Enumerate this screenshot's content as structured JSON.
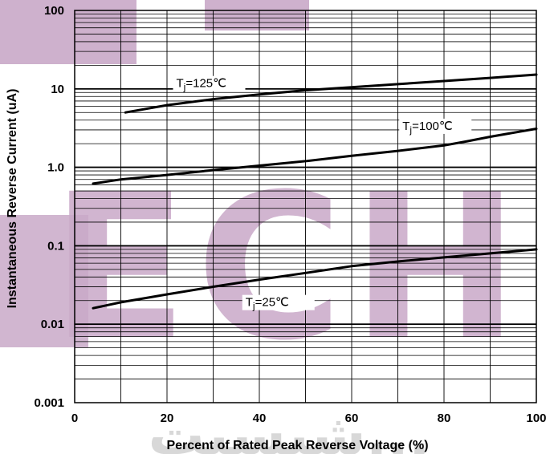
{
  "chart_data": {
    "type": "line",
    "x_scale": "linear",
    "y_scale": "log",
    "xlim": [
      0,
      100
    ],
    "ylim": [
      0.001,
      100
    ],
    "grid": true,
    "xlabel": "Percent of Rated Peak Reverse Voltage (%)",
    "ylabel": "Instantaneous Reverse Current (uA)",
    "x_ticks": [
      {
        "value": 0,
        "label": "0"
      },
      {
        "value": 20,
        "label": "20"
      },
      {
        "value": 40,
        "label": "40"
      },
      {
        "value": 60,
        "label": "60"
      },
      {
        "value": 80,
        "label": "80"
      },
      {
        "value": 100,
        "label": "100"
      }
    ],
    "y_ticks": [
      {
        "value": 100,
        "label": "100"
      },
      {
        "value": 10,
        "label": "10"
      },
      {
        "value": 1,
        "label": "1.0"
      },
      {
        "value": 0.1,
        "label": "0.1"
      },
      {
        "value": 0.01,
        "label": "0.01"
      },
      {
        "value": 0.001,
        "label": "0.001"
      }
    ],
    "series": [
      {
        "name": "Tj=125℃",
        "label_base": "T",
        "label_sub": "j",
        "label_rest": "=125℃",
        "label_anchor": [
          22,
          10.5
        ],
        "x": [
          11,
          20,
          30,
          40,
          50,
          60,
          70,
          80,
          90,
          100
        ],
        "y": [
          5.0,
          6.2,
          7.4,
          8.5,
          9.6,
          10.5,
          11.5,
          12.6,
          13.8,
          15.2
        ]
      },
      {
        "name": "Tj=100℃",
        "label_base": "T",
        "label_sub": "j",
        "label_rest": "=100℃",
        "label_anchor": [
          71,
          3.0
        ],
        "x": [
          4,
          10,
          20,
          30,
          40,
          50,
          60,
          70,
          80,
          85,
          90,
          100
        ],
        "y": [
          0.62,
          0.7,
          0.8,
          0.92,
          1.05,
          1.2,
          1.4,
          1.62,
          1.9,
          2.15,
          2.45,
          3.1
        ]
      },
      {
        "name": "Tj=25℃",
        "label_base": "T",
        "label_sub": "j",
        "label_rest": "=25℃",
        "label_anchor": [
          37,
          0.017
        ],
        "x": [
          4,
          10,
          20,
          30,
          40,
          50,
          60,
          70,
          80,
          90,
          100
        ],
        "y": [
          0.016,
          0.019,
          0.024,
          0.03,
          0.037,
          0.045,
          0.055,
          0.063,
          0.071,
          0.08,
          0.09
        ]
      }
    ]
  },
  "watermark": {
    "main_text": "ECH",
    "bottom_text": "شبسیت...",
    "color": "#c9a9c8"
  }
}
